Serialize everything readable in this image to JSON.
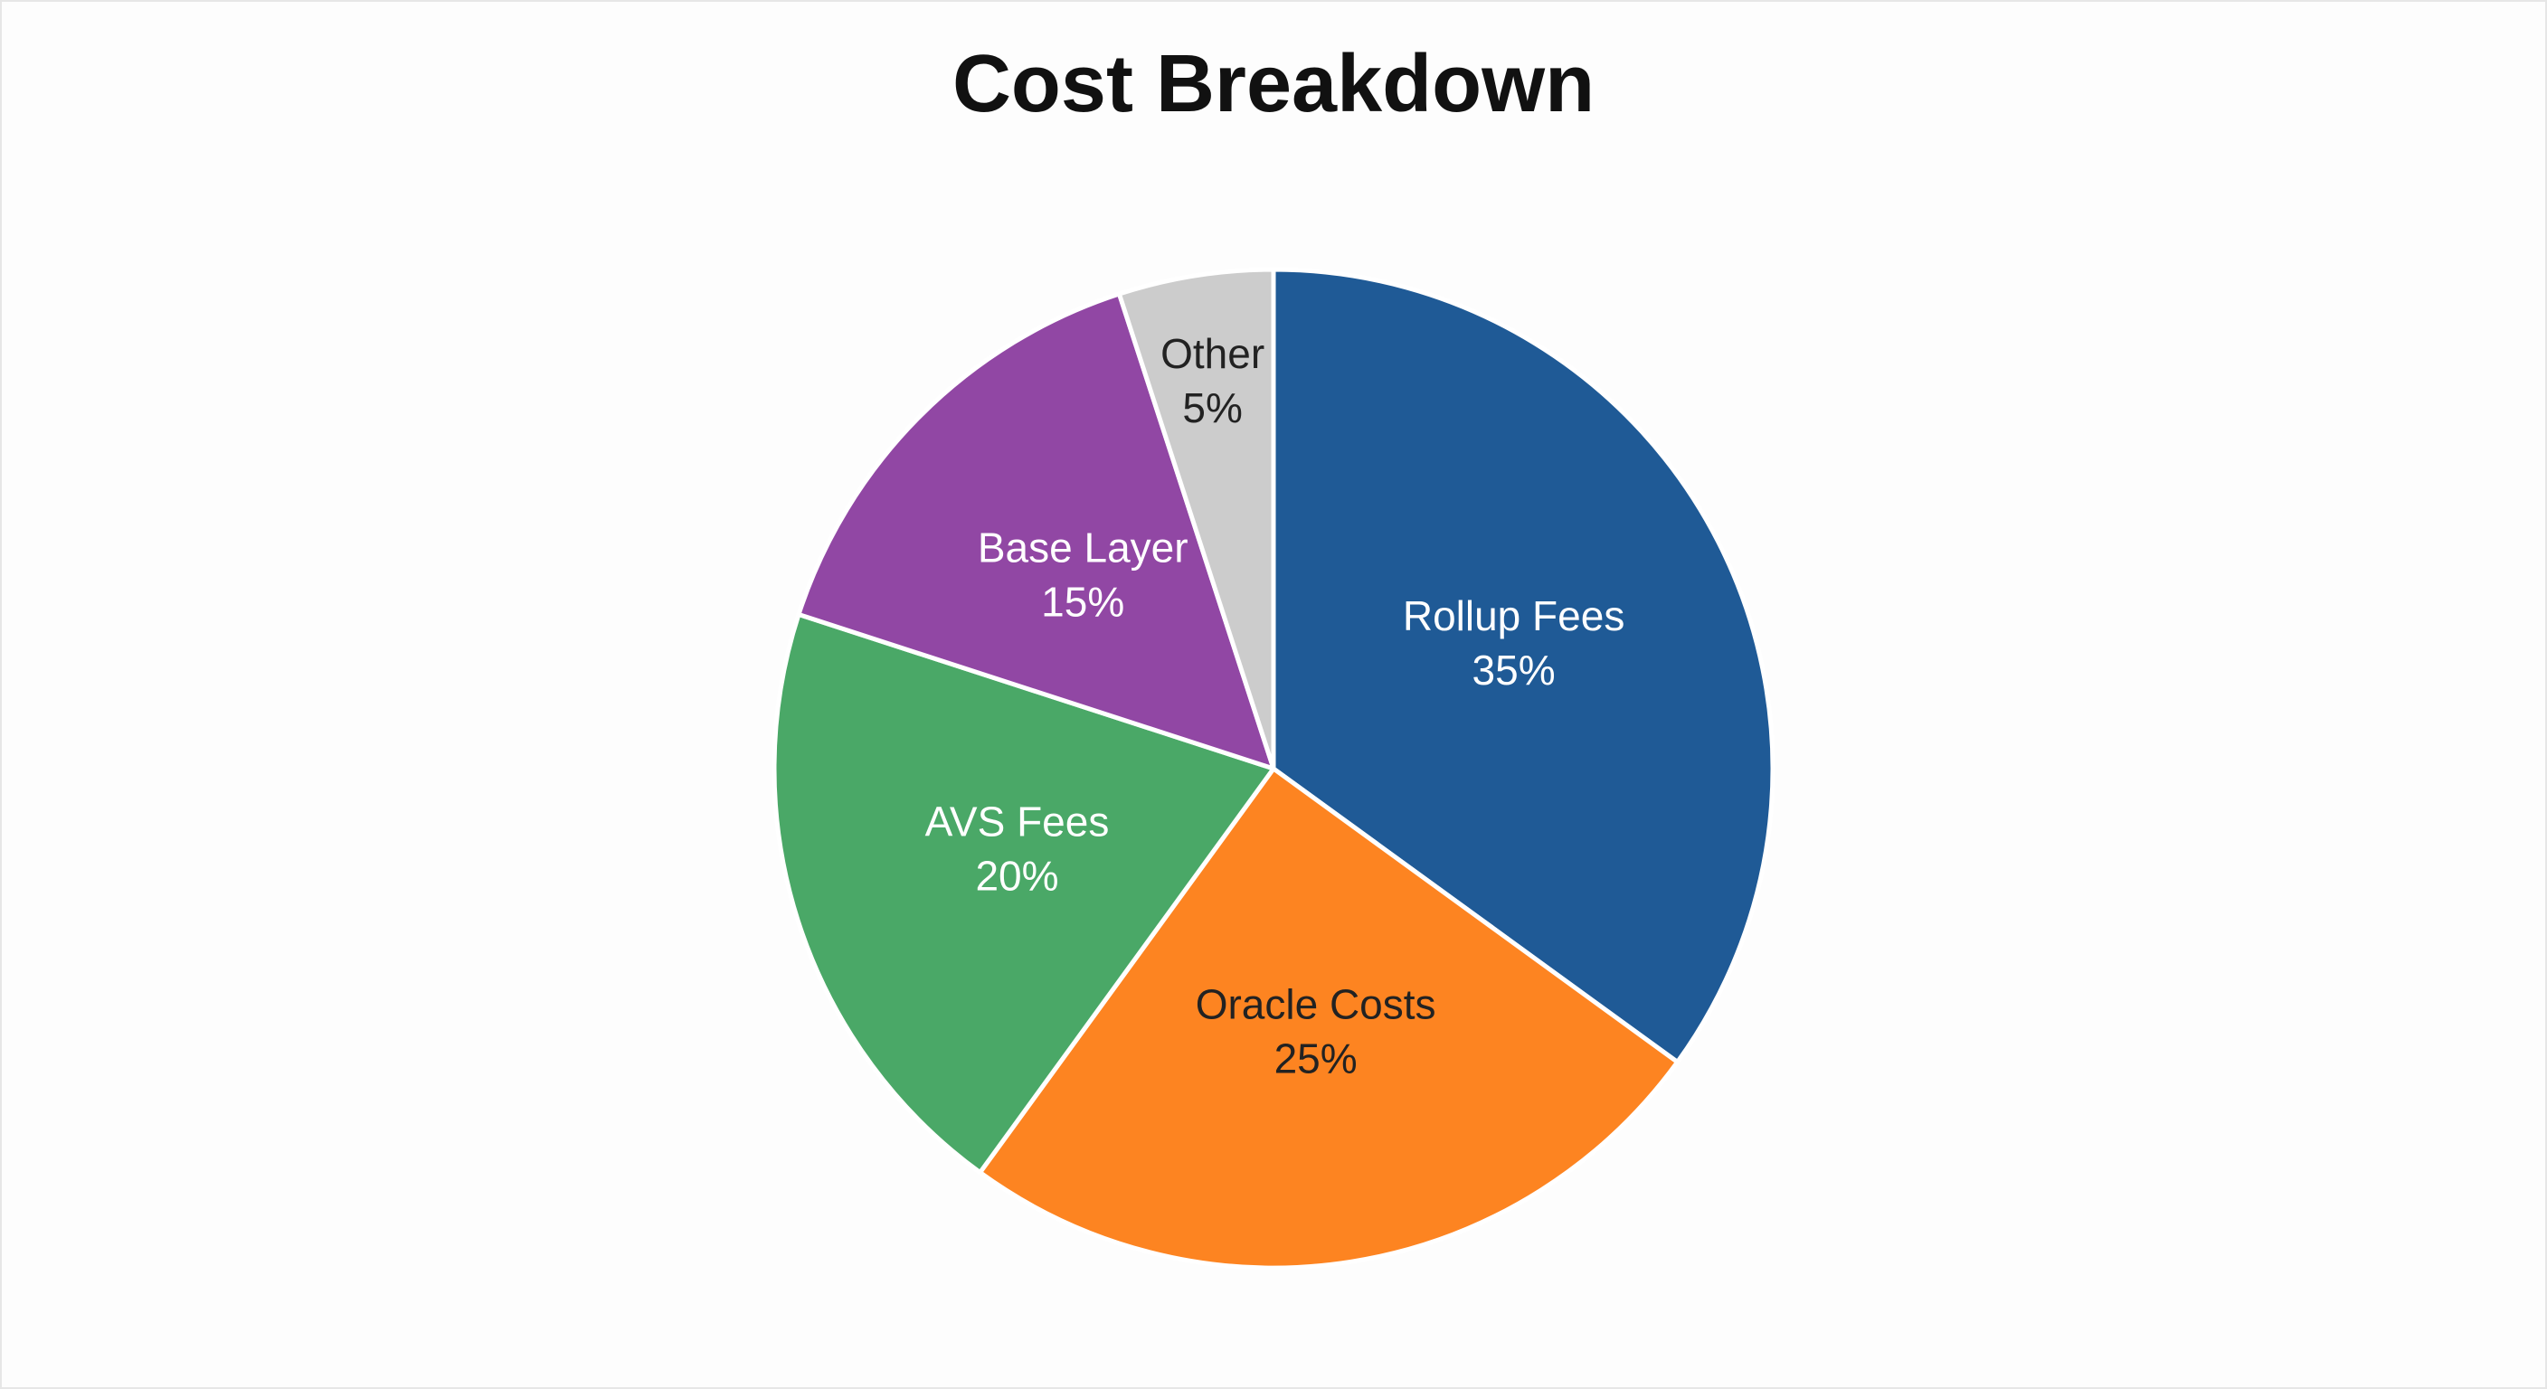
{
  "chart_data": {
    "type": "pie",
    "title": "Cost Breakdown",
    "categories": [
      "Rollup Fees",
      "Oracle Costs",
      "AVS Fees",
      "Base Layer",
      "Other"
    ],
    "values": [
      35,
      25,
      20,
      15,
      5
    ],
    "value_labels": [
      "35%",
      "25%",
      "20%",
      "15%",
      "5%"
    ],
    "colors": [
      "#1f5a96",
      "#fd8421",
      "#4aa867",
      "#9147a4",
      "#cccccc"
    ]
  }
}
